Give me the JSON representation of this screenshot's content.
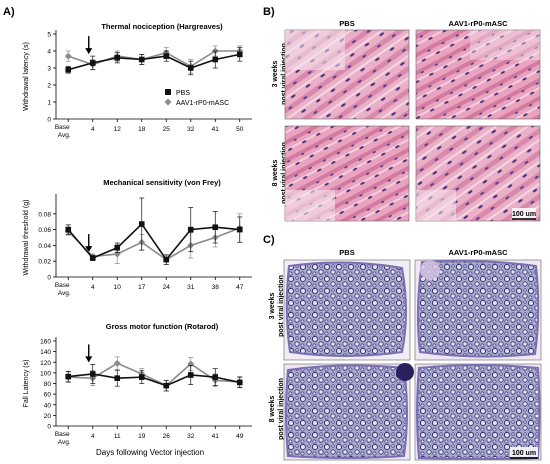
{
  "panel_labels": {
    "a": "A)",
    "b": "B)",
    "c": "C)"
  },
  "shared_xlabel": "Days following Vector injection",
  "colors": {
    "pbs": "#111111",
    "aav": "#8a8a8a",
    "he_stain": "#e8a9c2",
    "toluidine": "#a9a8d0",
    "he_nuclei": "#3b2a6e",
    "tb_myelin": "#2d2a66"
  },
  "chart_data": [
    {
      "type": "line",
      "title": "Thermal nociception (Hargreaves)",
      "ylabel": "Withdrawal latency (s)",
      "xlabel": "",
      "categories": [
        "Base Avg.",
        "4",
        "12",
        "18",
        "25",
        "32",
        "41",
        "50"
      ],
      "ylim": [
        0,
        5
      ],
      "yticks": [
        "0",
        "1",
        "2",
        "3",
        "4",
        "5"
      ],
      "grid": false,
      "legend_position": "bottom-right",
      "arrow_at": "4",
      "series": [
        {
          "name": "PBS",
          "marker": "square",
          "values": [
            2.9,
            3.3,
            3.6,
            3.5,
            3.7,
            3.0,
            3.5,
            3.8
          ],
          "err": [
            0.2,
            0.4,
            0.3,
            0.3,
            0.3,
            0.4,
            0.5,
            0.4
          ]
        },
        {
          "name": "AAV1-rP0-mASC",
          "marker": "diamond",
          "values": [
            3.7,
            3.2,
            3.7,
            3.5,
            3.9,
            3.1,
            4.0,
            4.0
          ],
          "err": [
            0.3,
            0.3,
            0.3,
            0.3,
            0.3,
            0.4,
            0.3,
            0.3
          ]
        }
      ]
    },
    {
      "type": "line",
      "title": "Mechanical sensitivity (von Frey)",
      "ylabel": "Withdrawal threshold (g)",
      "xlabel": "",
      "categories": [
        "Base Avg.",
        "4",
        "10",
        "17",
        "24",
        "31",
        "38",
        "47"
      ],
      "ylim": [
        0,
        0.1
      ],
      "yticks": [
        "0",
        "0.02",
        "0.04",
        "0.06",
        "0.08"
      ],
      "grid": false,
      "legend_position": "",
      "arrow_at": "4",
      "series": [
        {
          "name": "PBS",
          "marker": "square",
          "values": [
            0.06,
            0.024,
            0.037,
            0.067,
            0.022,
            0.06,
            0.063,
            0.06
          ],
          "err": [
            0.006,
            0.003,
            0.006,
            0.033,
            0.006,
            0.028,
            0.02,
            0.016
          ]
        },
        {
          "name": "AAV1-rP0-mASC",
          "marker": "diamond",
          "values": [
            0.058,
            0.026,
            0.029,
            0.044,
            0.022,
            0.04,
            0.05,
            0.062
          ],
          "err": [
            0.005,
            0.003,
            0.012,
            0.01,
            0.006,
            0.016,
            0.012,
            0.018
          ]
        }
      ]
    },
    {
      "type": "line",
      "title": "Gross motor function (Rotarod)",
      "ylabel": "Fall Latency (s)",
      "xlabel": "",
      "categories": [
        "Base Avg.",
        "4",
        "11",
        "19",
        "26",
        "32",
        "41",
        "49"
      ],
      "ylim": [
        0,
        160
      ],
      "yticks": [
        "0",
        "20",
        "40",
        "60",
        "80",
        "100",
        "120",
        "140",
        "160"
      ],
      "grid": false,
      "legend_position": "",
      "arrow_at": "4",
      "series": [
        {
          "name": "PBS",
          "marker": "square",
          "values": [
            93,
            98,
            90,
            92,
            76,
            96,
            92,
            82
          ],
          "err": [
            10,
            18,
            15,
            12,
            10,
            18,
            16,
            10
          ]
        },
        {
          "name": "AAV1-rP0-mASC",
          "marker": "diamond",
          "values": [
            92,
            90,
            118,
            98,
            76,
            117,
            86,
            83
          ],
          "err": [
            10,
            14,
            12,
            10,
            10,
            12,
            12,
            10
          ]
        }
      ]
    }
  ],
  "panel_b": {
    "col_titles": [
      "PBS",
      "AAV1-rP0-mASC"
    ],
    "row_labels": [
      [
        "3 weeks",
        "post viral injection"
      ],
      [
        "8 weeks",
        "post viral injection"
      ]
    ],
    "scale_bar": "100 um"
  },
  "panel_c": {
    "col_titles": [
      "PBS",
      "AAV1-rP0-mASC"
    ],
    "row_labels": [
      [
        "3 weeks",
        "post viral injection"
      ],
      [
        "8 weeks",
        "post viral injection"
      ]
    ],
    "scale_bar": "100 um"
  }
}
